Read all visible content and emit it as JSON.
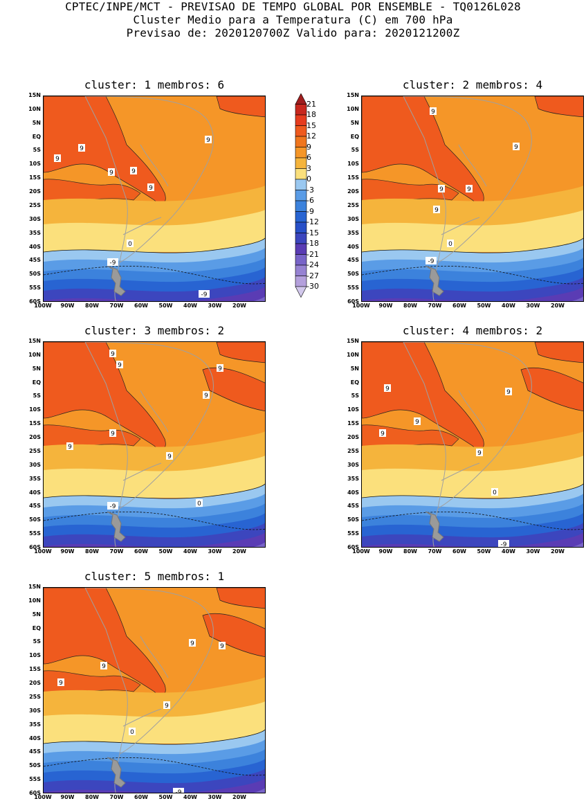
{
  "header": {
    "line1": "CPTEC/INPE/MCT - PREVISAO DE TEMPO GLOBAL POR ENSEMBLE - TQ0126L028",
    "line2": "Cluster Medio para a Temperatura (C) em 700 hPa",
    "line3": "Previsao de: 2020120700Z   Valido para: 2020121200Z"
  },
  "lat_labels": [
    "15N",
    "10N",
    "5N",
    "EQ",
    "5S",
    "10S",
    "15S",
    "20S",
    "25S",
    "30S",
    "35S",
    "40S",
    "45S",
    "50S",
    "55S",
    "60S"
  ],
  "lon_labels": [
    "100W",
    "90W",
    "80W",
    "70W",
    "60W",
    "50W",
    "40W",
    "30W",
    "20W"
  ],
  "colorbar": {
    "labels": [
      "21",
      "18",
      "15",
      "12",
      "9",
      "6",
      "3",
      "0",
      "-3",
      "-6",
      "-9",
      "-12",
      "-15",
      "-18",
      "-21",
      "-24",
      "-27",
      "-30"
    ],
    "colors": [
      "#a01e1e",
      "#c8281e",
      "#e63c1e",
      "#ef5a1e",
      "#f0761e",
      "#f59628",
      "#f5b43c",
      "#fbe07c",
      "#9ac8f0",
      "#5a9ce6",
      "#3c82dc",
      "#2864d2",
      "#2850c8",
      "#3c46be",
      "#5a3cb4",
      "#7864c8",
      "#9682d2",
      "#b4a0dc",
      "#d2c8ec"
    ]
  },
  "clusters": [
    {
      "title": "cluster: 1   membros: 6"
    },
    {
      "title": "cluster: 2   membros: 4"
    },
    {
      "title": "cluster: 3   membros: 2"
    },
    {
      "title": "cluster: 4   membros: 2"
    },
    {
      "title": "cluster: 5   membros: 1"
    }
  ],
  "contour_labels": {
    "nine": "9",
    "zero": "0",
    "minus_nine": "-9"
  }
}
